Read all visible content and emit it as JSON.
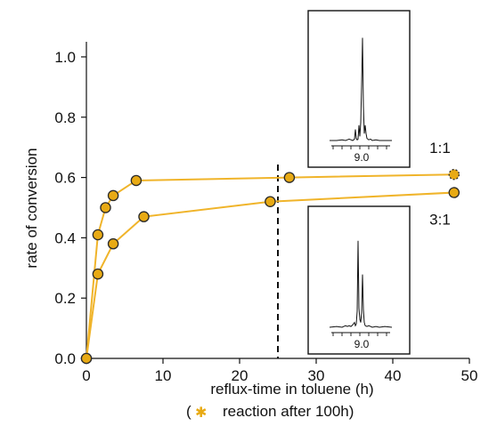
{
  "chart_data": {
    "type": "scatter",
    "xlabel": "reflux-time in toluene (h)",
    "ylabel": "rate of conversion",
    "xlim": [
      0,
      50
    ],
    "ylim": [
      0,
      1.05
    ],
    "x_ticks": [
      0,
      10,
      20,
      30,
      40,
      50
    ],
    "y_ticks": [
      0.0,
      0.2,
      0.4,
      0.6,
      0.8,
      1.0
    ],
    "x_tick_labels": [
      "0",
      "10",
      "20",
      "30",
      "40",
      "50"
    ],
    "y_tick_labels": [
      "0.0",
      "0.2",
      "0.4",
      "0.6",
      "0.8",
      "1.0"
    ],
    "grid": false,
    "marker_color": "#e8aa14",
    "line_color": "#f0b42a",
    "series": [
      {
        "name": "1:1",
        "x": [
          0,
          1.5,
          2.5,
          3.5,
          6.5,
          26.5,
          48
        ],
        "y": [
          0,
          0.41,
          0.5,
          0.54,
          0.59,
          0.6,
          0.61
        ],
        "special_last_point": true
      },
      {
        "name": "3:1",
        "x": [
          0,
          1.5,
          3.5,
          7.5,
          24,
          48
        ],
        "y": [
          0,
          0.28,
          0.38,
          0.47,
          0.52,
          0.55
        ]
      }
    ],
    "reference_line": {
      "x": 25,
      "style": "dashed"
    },
    "annotation": {
      "open": "(",
      "star": "✱",
      "text": "reaction after 100h)"
    },
    "insets": [
      {
        "position": "top",
        "tick_label": "9.0"
      },
      {
        "position": "bottom",
        "tick_label": "9.0"
      }
    ]
  }
}
